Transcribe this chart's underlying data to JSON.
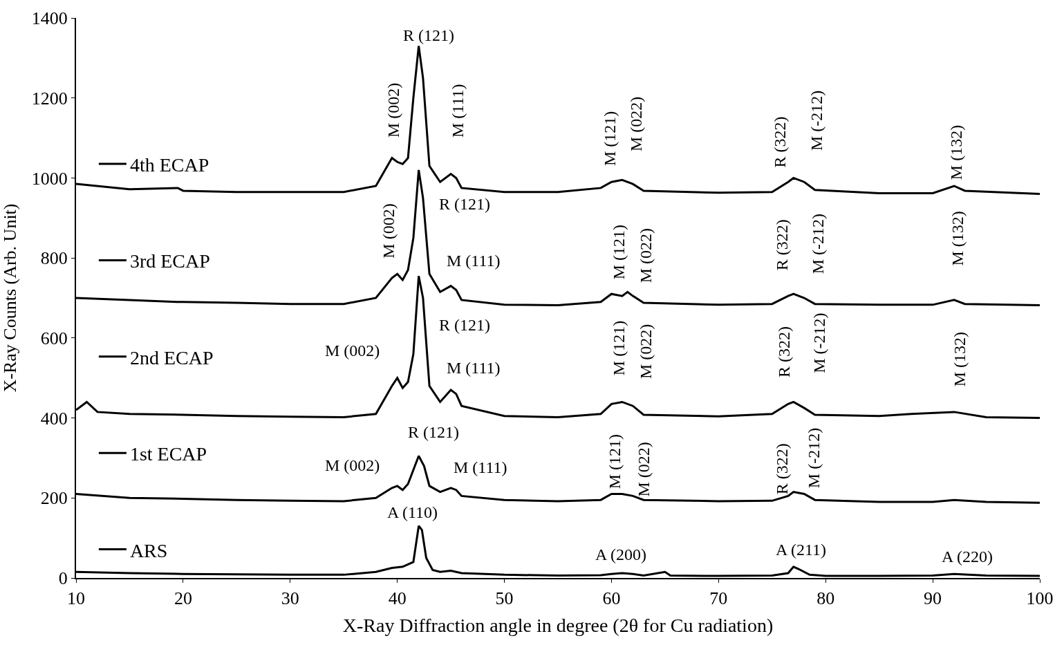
{
  "chart_data": {
    "type": "line",
    "xlabel": "X-Ray Diffraction angle in degree (2θ for Cu radiation)",
    "ylabel": "X-Ray Counts (Arb. Unit)",
    "xlim": [
      10,
      100
    ],
    "xticks": [
      10,
      20,
      30,
      40,
      50,
      60,
      70,
      80,
      90,
      100
    ],
    "ylim": [
      0,
      1400
    ],
    "yticks": [
      0,
      200,
      400,
      600,
      800,
      1000,
      1200,
      1400
    ],
    "legend": "left",
    "marker": "none",
    "line_style": "solid",
    "series": [
      {
        "name": "4th ECAP",
        "color": "#000000",
        "x": [
          10,
          15,
          19.5,
          20,
          25,
          30,
          35,
          38,
          39.5,
          40,
          40.5,
          41,
          41.5,
          42,
          42.4,
          43,
          44,
          45,
          45.5,
          46,
          50,
          55,
          59,
          60,
          61,
          62,
          63,
          70,
          75,
          76.5,
          77,
          78,
          79,
          85,
          90,
          92,
          93,
          100
        ],
        "values": [
          985,
          972,
          975,
          968,
          965,
          965,
          965,
          980,
          1050,
          1040,
          1035,
          1050,
          1200,
          1330,
          1250,
          1030,
          990,
          1010,
          1000,
          975,
          965,
          965,
          975,
          990,
          995,
          985,
          968,
          963,
          965,
          990,
          1000,
          990,
          970,
          962,
          962,
          980,
          968,
          960
        ]
      },
      {
        "name": "3rd ECAP",
        "color": "#000000",
        "x": [
          10,
          15,
          19.5,
          20,
          25,
          30,
          35,
          38,
          39.5,
          40,
          40.5,
          41,
          41.5,
          42,
          42.4,
          43,
          44,
          45,
          45.5,
          46,
          50,
          55,
          59,
          60,
          61,
          61.5,
          62,
          63,
          70,
          75,
          76.5,
          77,
          78,
          79,
          85,
          90,
          92,
          93,
          100
        ],
        "values": [
          700,
          695,
          690,
          690,
          688,
          685,
          685,
          700,
          750,
          760,
          745,
          770,
          850,
          1020,
          950,
          760,
          715,
          730,
          720,
          695,
          683,
          682,
          690,
          710,
          705,
          715,
          705,
          688,
          683,
          685,
          705,
          710,
          700,
          685,
          683,
          683,
          695,
          685,
          682
        ]
      },
      {
        "name": "2nd ECAP",
        "color": "#000000",
        "x": [
          10,
          11,
          12,
          15,
          20,
          25,
          30,
          35,
          38,
          39.5,
          40,
          40.5,
          41,
          41.5,
          42,
          42.4,
          43,
          44,
          45,
          45.5,
          46,
          50,
          55,
          59,
          60,
          61,
          62,
          63,
          70,
          75,
          76.5,
          77,
          78,
          79,
          85,
          88,
          92,
          95,
          100
        ],
        "values": [
          420,
          440,
          415,
          410,
          408,
          405,
          403,
          402,
          410,
          480,
          500,
          475,
          490,
          560,
          755,
          700,
          480,
          440,
          470,
          460,
          430,
          405,
          402,
          410,
          435,
          440,
          430,
          408,
          404,
          410,
          435,
          440,
          425,
          408,
          405,
          410,
          415,
          402,
          400
        ]
      },
      {
        "name": "1st ECAP",
        "color": "#000000",
        "x": [
          10,
          15,
          20,
          25,
          30,
          35,
          38,
          39.5,
          40,
          40.5,
          41,
          41.5,
          42,
          42.5,
          43,
          44,
          45,
          45.5,
          46,
          50,
          55,
          59,
          60,
          61,
          62,
          63,
          70,
          75,
          76.5,
          77,
          78,
          79,
          85,
          90,
          92,
          95,
          100
        ],
        "values": [
          210,
          200,
          198,
          195,
          193,
          192,
          200,
          225,
          230,
          220,
          235,
          270,
          305,
          280,
          230,
          215,
          225,
          220,
          205,
          195,
          192,
          195,
          210,
          210,
          205,
          195,
          192,
          193,
          205,
          215,
          210,
          195,
          190,
          190,
          195,
          190,
          188
        ]
      },
      {
        "name": "ARS",
        "color": "#000000",
        "x": [
          10,
          15,
          20,
          25,
          30,
          35,
          38,
          39.5,
          40.5,
          41.5,
          42,
          42.3,
          42.7,
          43.3,
          44,
          45,
          46,
          50,
          55,
          59,
          60,
          61,
          62,
          63,
          65,
          65.5,
          70,
          75,
          76.5,
          77,
          77.5,
          78.5,
          80,
          85,
          90,
          92,
          95,
          100
        ],
        "values": [
          15,
          12,
          10,
          9,
          8,
          8,
          15,
          25,
          28,
          40,
          130,
          120,
          50,
          20,
          15,
          18,
          12,
          8,
          6,
          7,
          10,
          12,
          10,
          6,
          15,
          6,
          5,
          6,
          12,
          28,
          22,
          8,
          5,
          5,
          6,
          10,
          6,
          5
        ]
      }
    ],
    "annotations": [
      "M (002)",
      "R (121)",
      "M (111)",
      "M (121)",
      "M (022)",
      "R (322)",
      "M (-212)",
      "M (132)",
      "M (002)",
      "R (121)",
      "M (111)",
      "M (121)",
      "M (022)",
      "R (322)",
      "M (-212)",
      "M (132)",
      "M (002)",
      "R (121)",
      "M (111)",
      "M (121)",
      "M (022)",
      "R (322)",
      "M (-212)",
      "M (132)",
      "R (121)",
      "M (002)",
      "M (111)",
      "M (121)",
      "M (022)",
      "R (322)",
      "M (-212)",
      "A (110)",
      "A (200)",
      "A (211)",
      "A (220)"
    ]
  }
}
